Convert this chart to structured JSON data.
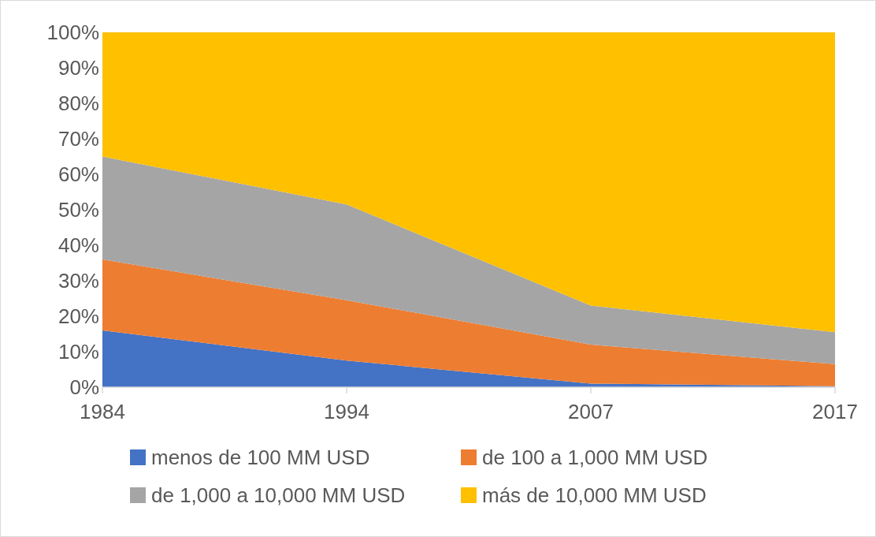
{
  "chart_data": {
    "type": "area",
    "stacked": true,
    "categories": [
      "1984",
      "1994",
      "2007",
      "2017"
    ],
    "series": [
      {
        "name": "menos de 100 MM USD",
        "color": "#4472c4",
        "values": [
          16,
          7.5,
          1,
          0.3
        ]
      },
      {
        "name": "de 100 a 1,000 MM USD",
        "color": "#ed7d31",
        "values": [
          20,
          17,
          11,
          6.2
        ]
      },
      {
        "name": "de 1,000 a 10,000 MM USD",
        "color": "#a5a5a5",
        "values": [
          29,
          27,
          11,
          9
        ]
      },
      {
        "name": "más de 10,000 MM USD",
        "color": "#ffc000",
        "values": [
          35,
          48.5,
          77,
          84.5
        ]
      }
    ],
    "ylim": [
      0,
      100
    ],
    "yticks": [
      {
        "value": 0,
        "label": "0%"
      },
      {
        "value": 10,
        "label": "10%"
      },
      {
        "value": 20,
        "label": "20%"
      },
      {
        "value": 30,
        "label": "30%"
      },
      {
        "value": 40,
        "label": "40%"
      },
      {
        "value": 50,
        "label": "50%"
      },
      {
        "value": 60,
        "label": "60%"
      },
      {
        "value": 70,
        "label": "70%"
      },
      {
        "value": 80,
        "label": "80%"
      },
      {
        "value": 90,
        "label": "90%"
      },
      {
        "value": 100,
        "label": "100%"
      }
    ],
    "legend": "bottom",
    "grid": false
  }
}
